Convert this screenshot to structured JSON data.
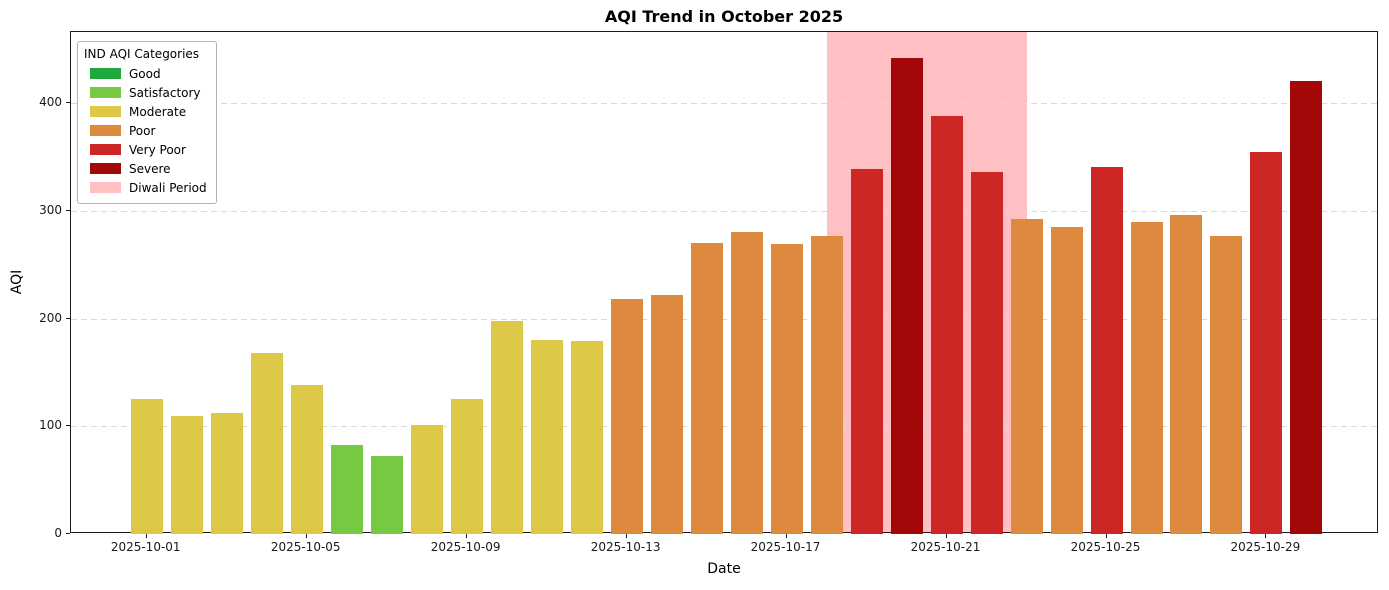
{
  "title": "AQI Trend in October 2025",
  "xlabel": "Date",
  "ylabel": "AQI",
  "legend": {
    "title": "IND AQI Categories",
    "items": [
      {
        "label": "Good",
        "color": "#1fa83c"
      },
      {
        "label": "Satisfactory",
        "color": "#77c843"
      },
      {
        "label": "Moderate",
        "color": "#ddc746"
      },
      {
        "label": "Poor",
        "color": "#dd8a3e"
      },
      {
        "label": "Very Poor",
        "color": "#cd2725"
      },
      {
        "label": "Severe",
        "color": "#a30808"
      },
      {
        "label": "Diwali Period",
        "color": "#fec0c2"
      }
    ]
  },
  "chart_data": {
    "type": "bar",
    "title": "AQI Trend in October 2025",
    "xlabel": "Date",
    "ylabel": "AQI",
    "ylim": [
      0,
      466
    ],
    "yticks": [
      0,
      100,
      200,
      300,
      400
    ],
    "grid": "horizontal, dashed, lightgray",
    "legend_position": "upper left",
    "xtick_labels": [
      "2025-10-01",
      "2025-10-05",
      "2025-10-09",
      "2025-10-13",
      "2025-10-17",
      "2025-10-21",
      "2025-10-25",
      "2025-10-29"
    ],
    "dates": [
      "2025-10-01",
      "2025-10-02",
      "2025-10-03",
      "2025-10-04",
      "2025-10-05",
      "2025-10-06",
      "2025-10-07",
      "2025-10-08",
      "2025-10-09",
      "2025-10-10",
      "2025-10-11",
      "2025-10-12",
      "2025-10-13",
      "2025-10-14",
      "2025-10-15",
      "2025-10-16",
      "2025-10-17",
      "2025-10-18",
      "2025-10-19",
      "2025-10-20",
      "2025-10-21",
      "2025-10-22",
      "2025-10-23",
      "2025-10-24",
      "2025-10-25",
      "2025-10-26",
      "2025-10-27",
      "2025-10-28",
      "2025-10-29",
      "2025-10-30"
    ],
    "values": [
      125,
      110,
      112,
      168,
      138,
      83,
      72,
      101,
      125,
      198,
      180,
      179,
      218,
      222,
      270,
      280,
      269,
      277,
      339,
      442,
      388,
      336,
      292,
      285,
      341,
      290,
      296,
      277,
      355,
      421
    ],
    "categories": [
      "Moderate",
      "Moderate",
      "Moderate",
      "Moderate",
      "Moderate",
      "Satisfactory",
      "Satisfactory",
      "Moderate",
      "Moderate",
      "Moderate",
      "Moderate",
      "Moderate",
      "Poor",
      "Poor",
      "Poor",
      "Poor",
      "Poor",
      "Poor",
      "Very Poor",
      "Severe",
      "Very Poor",
      "Very Poor",
      "Poor",
      "Poor",
      "Very Poor",
      "Poor",
      "Poor",
      "Poor",
      "Very Poor",
      "Severe"
    ],
    "category_colors": {
      "Good": "#1fa83c",
      "Satisfactory": "#77c843",
      "Moderate": "#ddc746",
      "Poor": "#dd8a3e",
      "Very Poor": "#cd2725",
      "Severe": "#a30808"
    },
    "diwali_span": {
      "start": "2025-10-18",
      "end": "2025-10-23",
      "color": "#fec0c2"
    }
  }
}
